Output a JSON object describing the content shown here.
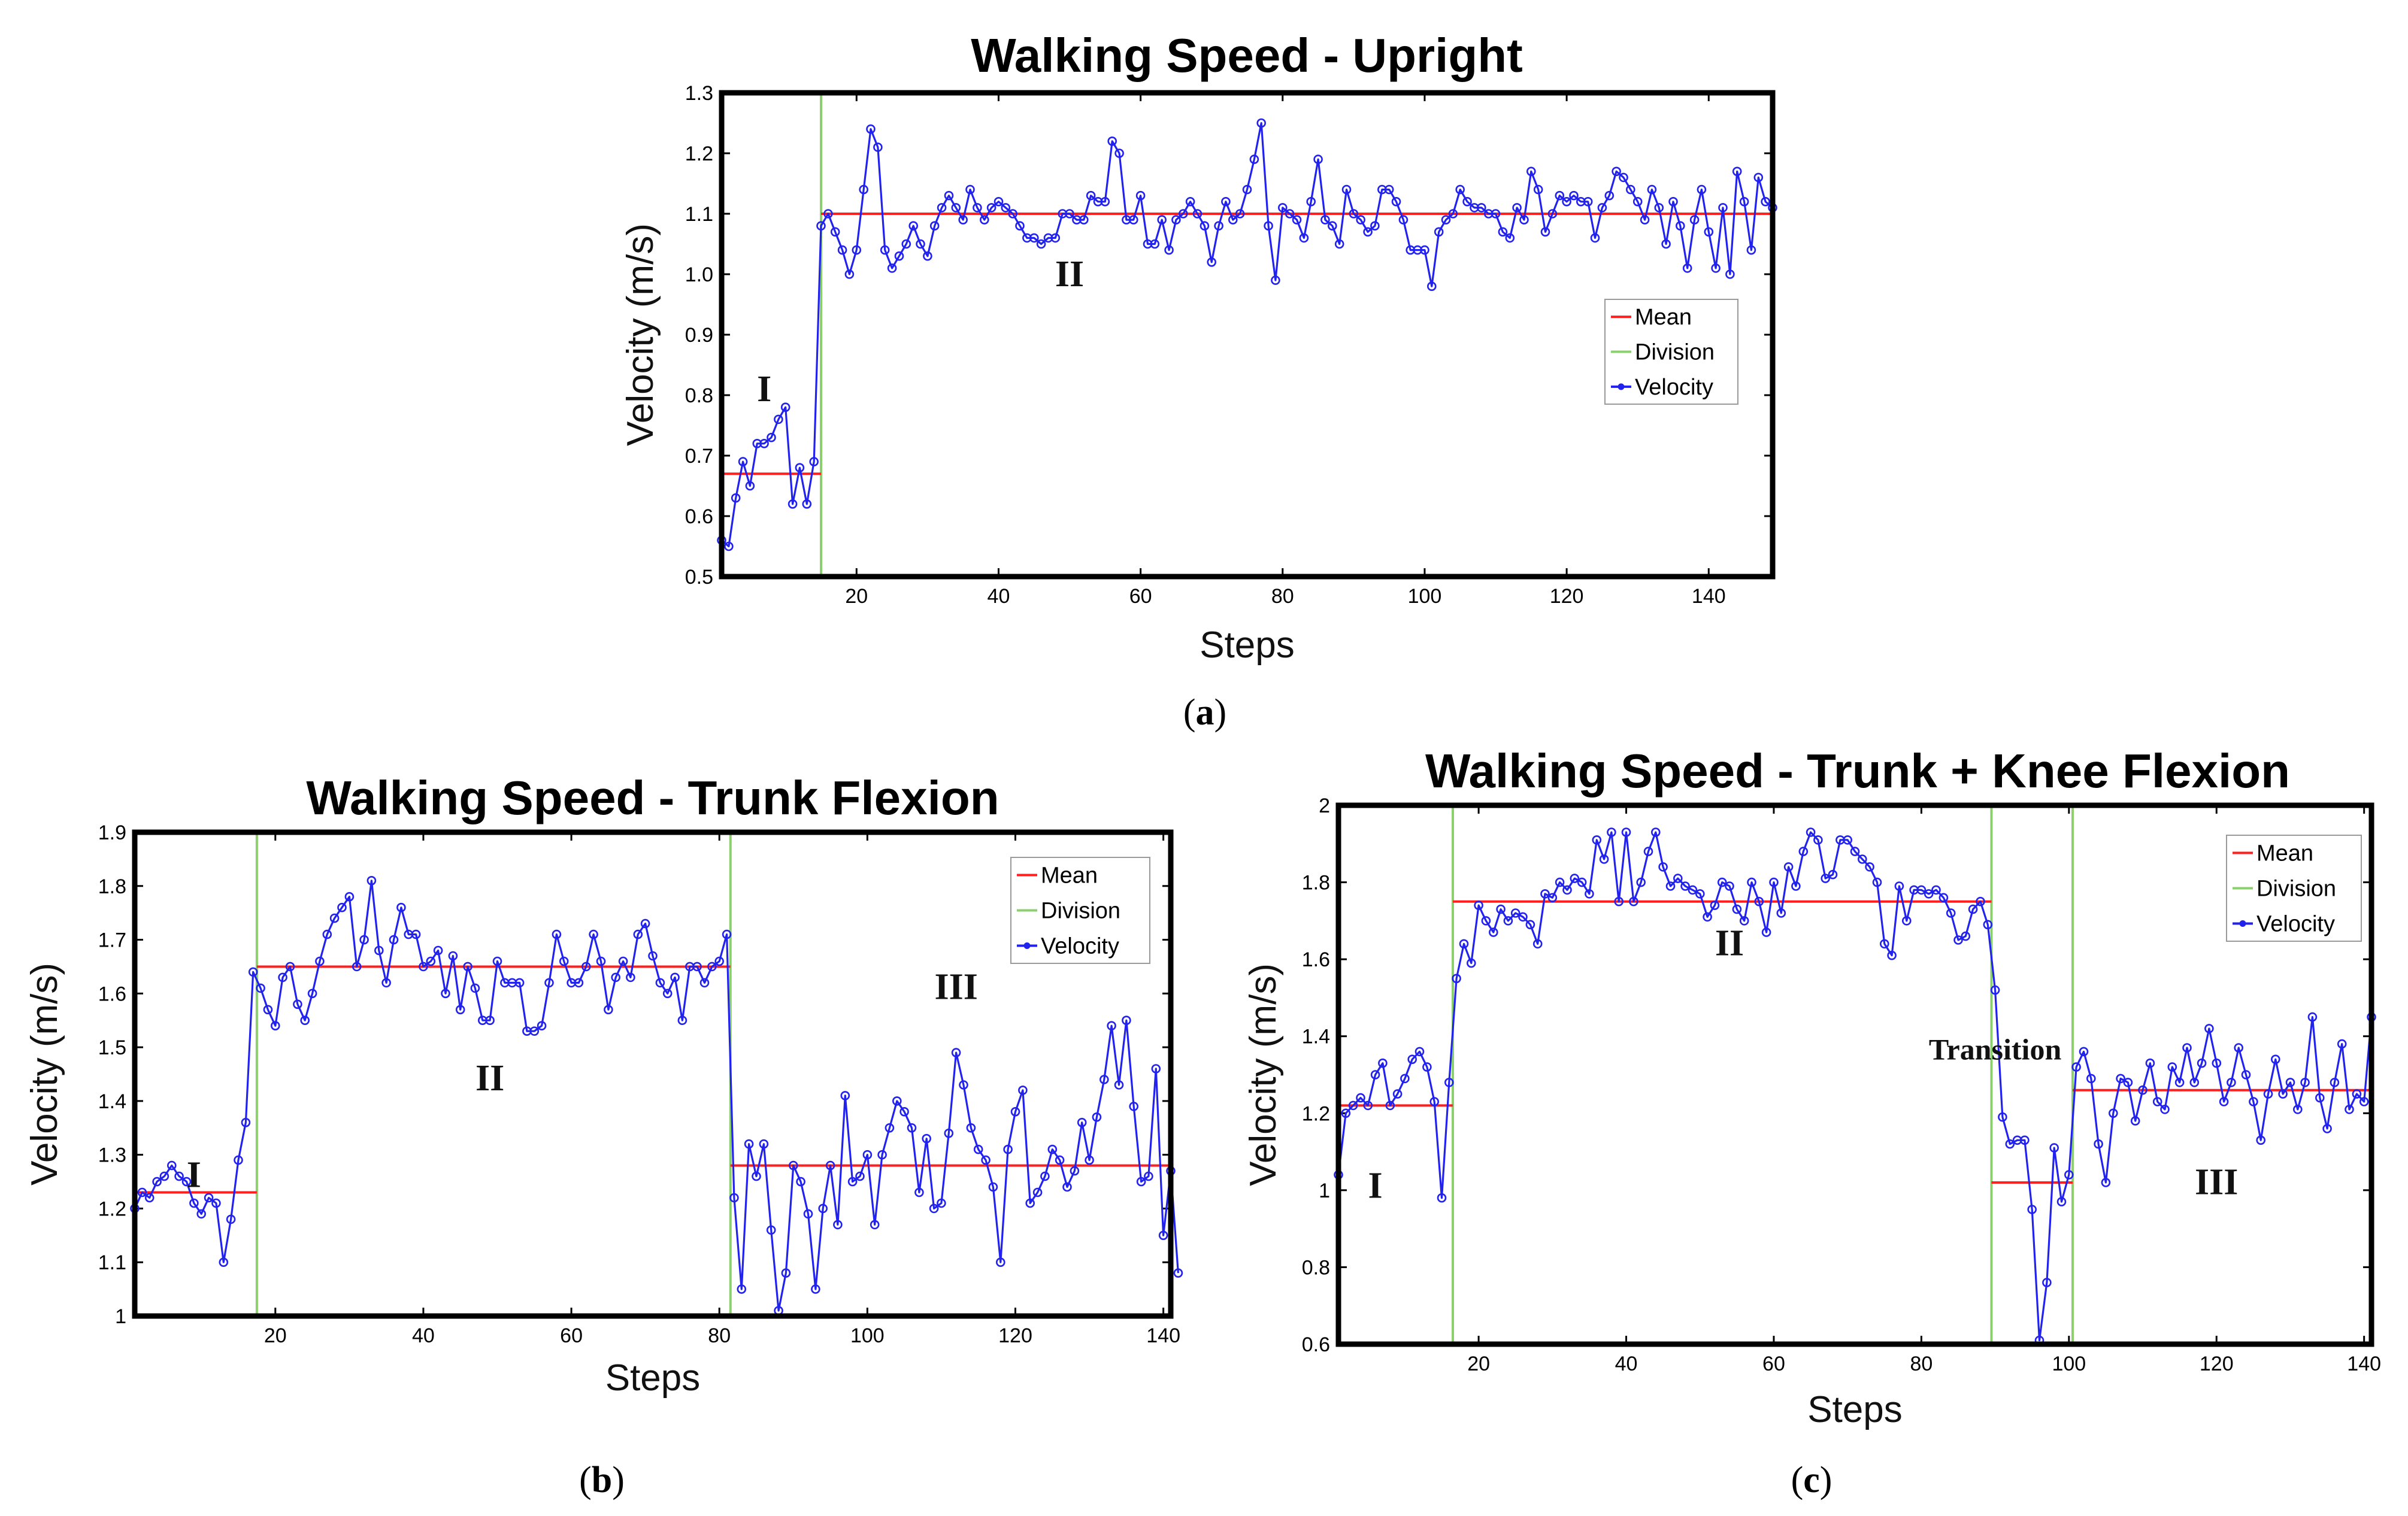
{
  "colors": {
    "mean": "#ff1f1f",
    "division": "#8ccf6e",
    "velocity": "#2222ee",
    "frame": "#000000"
  },
  "figure_captions": [
    {
      "open": "(",
      "letter": "a",
      "close": ")"
    },
    {
      "open": "(",
      "letter": "b",
      "close": ")"
    },
    {
      "open": "(",
      "letter": "c",
      "close": ")"
    }
  ],
  "chart_data": [
    {
      "type": "line",
      "title": "Walking Speed - Upright",
      "xlabel": "Steps",
      "ylabel": "Velocity (m/s)",
      "xlim": [
        1,
        149
      ],
      "ylim": [
        0.5,
        1.3
      ],
      "xticks": [
        20,
        40,
        60,
        80,
        100,
        120,
        140
      ],
      "yticks": [
        0.5,
        0.6,
        0.7,
        0.8,
        0.9,
        1.0,
        1.1,
        1.2,
        1.3
      ],
      "ytick_labels": [
        "0.5",
        "0.6",
        "0.7",
        "0.8",
        "0.9",
        "1.0",
        "1.1",
        "1.2",
        "1.3"
      ],
      "legend": {
        "position": "right",
        "entries": [
          "Mean",
          "Division",
          "Velocity"
        ]
      },
      "divisions": [
        15
      ],
      "means": [
        {
          "x0": 1,
          "x1": 15,
          "y": 0.67
        },
        {
          "x0": 15,
          "x1": 149,
          "y": 1.1
        }
      ],
      "phase_labels": [
        {
          "text": "I",
          "x": 7,
          "y": 0.79
        },
        {
          "text": "II",
          "x": 50,
          "y": 0.98
        }
      ],
      "series": [
        {
          "name": "Velocity",
          "x_start": 1,
          "values": [
            0.56,
            0.55,
            0.63,
            0.69,
            0.65,
            0.72,
            0.72,
            0.73,
            0.76,
            0.78,
            0.62,
            0.68,
            0.62,
            0.69,
            1.08,
            1.1,
            1.07,
            1.04,
            1.0,
            1.04,
            1.14,
            1.24,
            1.21,
            1.04,
            1.01,
            1.03,
            1.05,
            1.08,
            1.05,
            1.03,
            1.08,
            1.11,
            1.13,
            1.11,
            1.09,
            1.14,
            1.11,
            1.09,
            1.11,
            1.12,
            1.11,
            1.1,
            1.08,
            1.06,
            1.06,
            1.05,
            1.06,
            1.06,
            1.1,
            1.1,
            1.09,
            1.09,
            1.13,
            1.12,
            1.12,
            1.22,
            1.2,
            1.09,
            1.09,
            1.13,
            1.05,
            1.05,
            1.09,
            1.04,
            1.09,
            1.1,
            1.12,
            1.1,
            1.08,
            1.02,
            1.08,
            1.12,
            1.09,
            1.1,
            1.14,
            1.19,
            1.25,
            1.08,
            0.99,
            1.11,
            1.1,
            1.09,
            1.06,
            1.12,
            1.19,
            1.09,
            1.08,
            1.05,
            1.14,
            1.1,
            1.09,
            1.07,
            1.08,
            1.14,
            1.14,
            1.12,
            1.09,
            1.04,
            1.04,
            1.04,
            0.98,
            1.07,
            1.09,
            1.1,
            1.14,
            1.12,
            1.11,
            1.11,
            1.1,
            1.1,
            1.07,
            1.06,
            1.11,
            1.09,
            1.17,
            1.14,
            1.07,
            1.1,
            1.13,
            1.12,
            1.13,
            1.12,
            1.12,
            1.06,
            1.11,
            1.13,
            1.17,
            1.16,
            1.14,
            1.12,
            1.09,
            1.14,
            1.11,
            1.05,
            1.12,
            1.08,
            1.01,
            1.09,
            1.14,
            1.07,
            1.01,
            1.11,
            1.0,
            1.17,
            1.12,
            1.04,
            1.16,
            1.12,
            1.11
          ]
        }
      ]
    },
    {
      "type": "line",
      "title": "Walking Speed - Trunk Flexion",
      "xlabel": "Steps",
      "ylabel": "Velocity (m/s)",
      "xlim": [
        1,
        141
      ],
      "ylim": [
        1.0,
        1.9
      ],
      "xticks": [
        20,
        40,
        60,
        80,
        100,
        120,
        140
      ],
      "yticks": [
        1.0,
        1.1,
        1.2,
        1.3,
        1.4,
        1.5,
        1.6,
        1.7,
        1.8,
        1.9
      ],
      "ytick_labels": [
        "1",
        "1.1",
        "1.2",
        "1.3",
        "1.4",
        "1.5",
        "1.6",
        "1.7",
        "1.8",
        "1.9"
      ],
      "legend": {
        "position": "top-right",
        "entries": [
          "Mean",
          "Division",
          "Velocity"
        ]
      },
      "divisions": [
        17.5,
        81.5
      ],
      "means": [
        {
          "x0": 1,
          "x1": 17.5,
          "y": 1.23
        },
        {
          "x0": 17.5,
          "x1": 81.5,
          "y": 1.65
        },
        {
          "x0": 81.5,
          "x1": 141,
          "y": 1.28
        }
      ],
      "phase_labels": [
        {
          "text": "I",
          "x": 9,
          "y": 1.24
        },
        {
          "text": "II",
          "x": 49,
          "y": 1.42
        },
        {
          "text": "III",
          "x": 112,
          "y": 1.59
        }
      ],
      "series": [
        {
          "name": "Velocity",
          "x_start": 1,
          "values": [
            1.2,
            1.23,
            1.22,
            1.25,
            1.26,
            1.28,
            1.26,
            1.25,
            1.21,
            1.19,
            1.22,
            1.21,
            1.1,
            1.18,
            1.29,
            1.36,
            1.64,
            1.61,
            1.57,
            1.54,
            1.63,
            1.65,
            1.58,
            1.55,
            1.6,
            1.66,
            1.71,
            1.74,
            1.76,
            1.78,
            1.65,
            1.7,
            1.81,
            1.68,
            1.62,
            1.7,
            1.76,
            1.71,
            1.71,
            1.65,
            1.66,
            1.68,
            1.6,
            1.67,
            1.57,
            1.65,
            1.61,
            1.55,
            1.55,
            1.66,
            1.62,
            1.62,
            1.62,
            1.53,
            1.53,
            1.54,
            1.62,
            1.71,
            1.66,
            1.62,
            1.62,
            1.65,
            1.71,
            1.66,
            1.57,
            1.63,
            1.66,
            1.63,
            1.71,
            1.73,
            1.67,
            1.62,
            1.6,
            1.63,
            1.55,
            1.65,
            1.65,
            1.62,
            1.65,
            1.66,
            1.71,
            1.22,
            1.05,
            1.32,
            1.26,
            1.32,
            1.16,
            1.01,
            1.08,
            1.28,
            1.25,
            1.19,
            1.05,
            1.2,
            1.28,
            1.17,
            1.41,
            1.25,
            1.26,
            1.3,
            1.17,
            1.3,
            1.35,
            1.4,
            1.38,
            1.35,
            1.23,
            1.33,
            1.2,
            1.21,
            1.34,
            1.49,
            1.43,
            1.35,
            1.31,
            1.29,
            1.24,
            1.1,
            1.31,
            1.38,
            1.42,
            1.21,
            1.23,
            1.26,
            1.31,
            1.29,
            1.24,
            1.27,
            1.36,
            1.29,
            1.37,
            1.44,
            1.54,
            1.43,
            1.55,
            1.39,
            1.25,
            1.26,
            1.46,
            1.15,
            1.27,
            1.08
          ]
        }
      ]
    },
    {
      "type": "line",
      "title": "Walking Speed - Trunk + Knee Flexion",
      "xlabel": "Steps",
      "ylabel": "Velocity (m/s)",
      "xlim": [
        1,
        141
      ],
      "ylim": [
        0.6,
        2.0
      ],
      "xticks": [
        20,
        40,
        60,
        80,
        100,
        120,
        140
      ],
      "yticks": [
        0.6,
        0.8,
        1.0,
        1.2,
        1.4,
        1.6,
        1.8,
        2.0
      ],
      "ytick_labels": [
        "0.6",
        "0.8",
        "1",
        "1.2",
        "1.4",
        "1.6",
        "1.8",
        "2"
      ],
      "legend": {
        "position": "top-right",
        "entries": [
          "Mean",
          "Division",
          "Velocity"
        ]
      },
      "divisions": [
        16.5,
        89.5,
        100.5
      ],
      "means": [
        {
          "x0": 1,
          "x1": 16.5,
          "y": 1.22
        },
        {
          "x0": 16.5,
          "x1": 89.5,
          "y": 1.75
        },
        {
          "x0": 89.5,
          "x1": 100.5,
          "y": 1.02
        },
        {
          "x0": 100.5,
          "x1": 141,
          "y": 1.26
        }
      ],
      "phase_labels": [
        {
          "text": "I",
          "x": 6,
          "y": 0.98
        },
        {
          "text": "II",
          "x": 54,
          "y": 1.61
        },
        {
          "text": "Transition",
          "x": 90,
          "y": 1.34
        },
        {
          "text": "III",
          "x": 120,
          "y": 0.99
        }
      ],
      "series": [
        {
          "name": "Velocity",
          "x_start": 1,
          "values": [
            1.04,
            1.2,
            1.22,
            1.24,
            1.22,
            1.3,
            1.33,
            1.22,
            1.25,
            1.29,
            1.34,
            1.36,
            1.32,
            1.23,
            0.98,
            1.28,
            1.55,
            1.64,
            1.59,
            1.74,
            1.7,
            1.67,
            1.73,
            1.7,
            1.72,
            1.71,
            1.69,
            1.64,
            1.77,
            1.76,
            1.8,
            1.78,
            1.81,
            1.8,
            1.77,
            1.91,
            1.86,
            1.93,
            1.75,
            1.93,
            1.75,
            1.8,
            1.88,
            1.93,
            1.84,
            1.79,
            1.81,
            1.79,
            1.78,
            1.77,
            1.71,
            1.74,
            1.8,
            1.79,
            1.73,
            1.7,
            1.8,
            1.75,
            1.67,
            1.8,
            1.72,
            1.84,
            1.79,
            1.88,
            1.93,
            1.91,
            1.81,
            1.82,
            1.91,
            1.91,
            1.88,
            1.86,
            1.84,
            1.8,
            1.64,
            1.61,
            1.79,
            1.7,
            1.78,
            1.78,
            1.77,
            1.78,
            1.76,
            1.72,
            1.65,
            1.66,
            1.73,
            1.75,
            1.69,
            1.52,
            1.19,
            1.12,
            1.13,
            1.13,
            0.95,
            0.61,
            0.76,
            1.11,
            0.97,
            1.04,
            1.32,
            1.36,
            1.29,
            1.12,
            1.02,
            1.2,
            1.29,
            1.28,
            1.18,
            1.26,
            1.33,
            1.23,
            1.21,
            1.32,
            1.28,
            1.37,
            1.28,
            1.33,
            1.42,
            1.33,
            1.23,
            1.28,
            1.37,
            1.3,
            1.23,
            1.13,
            1.25,
            1.34,
            1.25,
            1.28,
            1.21,
            1.28,
            1.45,
            1.24,
            1.16,
            1.28,
            1.38,
            1.21,
            1.25,
            1.23,
            1.45
          ]
        }
      ]
    }
  ]
}
